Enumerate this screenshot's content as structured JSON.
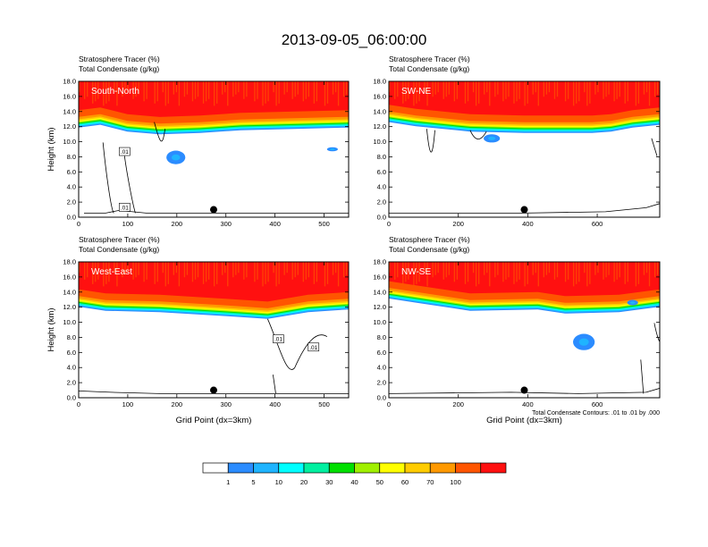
{
  "title": "2013-09-05_06:00:00",
  "colors": {
    "levels": [
      "#ffffff",
      "#2b8cff",
      "#1fb4ff",
      "#00ffff",
      "#00f0a0",
      "#00e000",
      "#a0f000",
      "#ffff00",
      "#ffcc00",
      "#ff9900",
      "#ff5500",
      "#ff1010"
    ],
    "axis": "#000000",
    "contour_line": "#000000"
  },
  "colorbar": {
    "labels": [
      "1",
      "5",
      "10",
      "20",
      "30",
      "40",
      "50",
      "60",
      "70",
      "100"
    ]
  },
  "contour_note": "Total Condensate Contours: .01 to .01 by .000",
  "chart_data": [
    {
      "type": "heatmap",
      "label": "South-North",
      "subtitle_left": "Stratosphere Tracer",
      "subtitle_unit": "(%)",
      "subtitle2_left": "Total Condensate",
      "subtitle2_unit": "(g/kg)",
      "ylabel": "Height (km)",
      "xlabel": "",
      "xlim": [
        0,
        550
      ],
      "xticks": [
        "0",
        "100",
        "200",
        "300",
        "400",
        "500"
      ],
      "ylim": [
        0,
        18
      ],
      "yticks": [
        "0.0",
        "2.0",
        "4.0",
        "6.0",
        "8.0",
        "10.0",
        "12.0",
        "14.0",
        "16.0",
        "18.0"
      ],
      "marker_x": 275,
      "contour_labels": [
        ".01",
        ".01"
      ]
    },
    {
      "type": "heatmap",
      "label": "SW-NE",
      "subtitle_left": "Stratosphere Tracer",
      "subtitle_unit": "(%)",
      "subtitle2_left": "Total Condensate",
      "subtitle2_unit": "(g/kg)",
      "ylabel": "",
      "xlabel": "",
      "xlim": [
        0,
        780
      ],
      "xticks": [
        "0",
        "200",
        "400",
        "600"
      ],
      "ylim": [
        0,
        18
      ],
      "yticks": [
        "0.0",
        "2.0",
        "4.0",
        "6.0",
        "8.0",
        "10.0",
        "12.0",
        "14.0",
        "16.0",
        "18.0"
      ],
      "marker_x": 390,
      "contour_labels": []
    },
    {
      "type": "heatmap",
      "label": "West-East",
      "subtitle_left": "Stratosphere Tracer",
      "subtitle_unit": "(%)",
      "subtitle2_left": "Total Condensate",
      "subtitle2_unit": "(g/kg)",
      "ylabel": "Height (km)",
      "xlabel": "Grid Point (dx=3km)",
      "xlim": [
        0,
        550
      ],
      "xticks": [
        "0",
        "100",
        "200",
        "300",
        "400",
        "500"
      ],
      "ylim": [
        0,
        18
      ],
      "yticks": [
        "0.0",
        "2.0",
        "4.0",
        "6.0",
        "8.0",
        "10.0",
        "12.0",
        "14.0",
        "16.0",
        "18.0"
      ],
      "marker_x": 275,
      "contour_labels": [
        ".01",
        ".01"
      ]
    },
    {
      "type": "heatmap",
      "label": "NW-SE",
      "subtitle_left": "Stratosphere Tracer",
      "subtitle_unit": "(%)",
      "subtitle2_left": "Total Condensate",
      "subtitle2_unit": "(g/kg)",
      "ylabel": "",
      "xlabel": "Grid Point (dx=3km)",
      "xlim": [
        0,
        780
      ],
      "xticks": [
        "0",
        "200",
        "400",
        "600"
      ],
      "ylim": [
        0,
        18
      ],
      "yticks": [
        "0.0",
        "2.0",
        "4.0",
        "6.0",
        "8.0",
        "10.0",
        "12.0",
        "14.0",
        "16.0",
        "18.0"
      ],
      "marker_x": 390,
      "contour_labels": []
    }
  ]
}
